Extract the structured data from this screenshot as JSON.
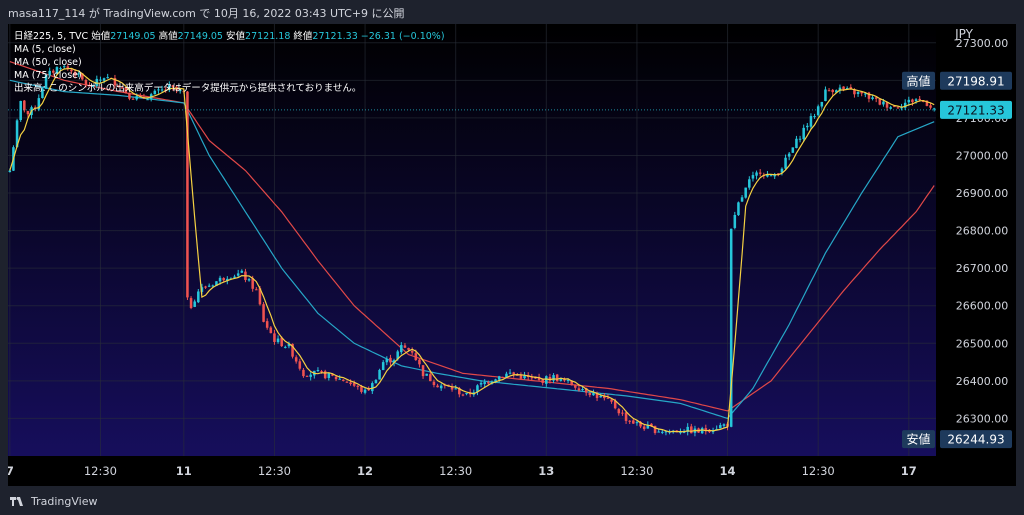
{
  "header": {
    "title": "masa117_114 が TradingView.com で 10月 16, 2022 03:43 UTC+9 に公開"
  },
  "legend": {
    "symbol": "日経225, 5, TVC",
    "open_label": "始値",
    "open_value": "27149.05",
    "high_label": "高値",
    "high_value": "27149.05",
    "low_label": "安値",
    "low_value": "27121.18",
    "close_label": "終値",
    "close_value": "27121.33",
    "change": "−26.31 (−0.10%)",
    "ma5": "MA (5, close)",
    "ma50": "MA (50, close)",
    "ma75": "MA (75, close)",
    "volume_note": "出来高: このシンボルの出来高データはデータ提供元から提供されておりません。"
  },
  "colors": {
    "up": "#26c6da",
    "down": "#ef5350",
    "ma5": "#f5d142",
    "ma50": "#26a7c7",
    "ma75": "#e04848",
    "bg_top": "#000000",
    "bg_bottom": "#160e5c",
    "label_bg": "#1e3a5c"
  },
  "footer": {
    "brand": "TradingView"
  },
  "chart_data": {
    "type": "candlestick",
    "currency": "JPY",
    "ylim": [
      26200,
      27350
    ],
    "y_ticks": [
      "27300.00",
      "27200.00",
      "27100.00",
      "27000.00",
      "26900.00",
      "26800.00",
      "26700.00",
      "26600.00",
      "26500.00",
      "26400.00",
      "26300.00"
    ],
    "x_ticks": [
      "7",
      "12:30",
      "11",
      "12:30",
      "12",
      "12:30",
      "13",
      "12:30",
      "14",
      "12:30",
      "17"
    ],
    "price_labels": [
      {
        "label": "高値",
        "value": "27198.91",
        "price": 27198.91
      },
      {
        "label": "",
        "value": "27121.33",
        "price": 27121.33
      },
      {
        "label": "安値",
        "value": "26244.93",
        "price": 26244.93
      }
    ],
    "price_path": [
      [
        0,
        26960
      ],
      [
        1.5,
        27060
      ],
      [
        3,
        27140
      ],
      [
        5,
        27110
      ],
      [
        7,
        27130
      ],
      [
        10,
        27210
      ],
      [
        14,
        27240
      ],
      [
        18,
        27220
      ],
      [
        22,
        27180
      ],
      [
        26,
        27210
      ],
      [
        30,
        27190
      ],
      [
        33,
        27160
      ],
      [
        36,
        27150
      ],
      [
        40,
        27165
      ],
      [
        44,
        27180
      ],
      [
        48,
        27165
      ],
      [
        48.5,
        26620
      ],
      [
        50,
        26600
      ],
      [
        52,
        26640
      ],
      [
        56,
        26660
      ],
      [
        60,
        26680
      ],
      [
        64,
        26685
      ],
      [
        68,
        26640
      ],
      [
        70,
        26560
      ],
      [
        73,
        26510
      ],
      [
        77,
        26490
      ],
      [
        81,
        26420
      ],
      [
        85,
        26420
      ],
      [
        89,
        26410
      ],
      [
        93,
        26400
      ],
      [
        96,
        26380
      ],
      [
        98,
        26370
      ],
      [
        100,
        26390
      ],
      [
        103,
        26450
      ],
      [
        106,
        26460
      ],
      [
        108,
        26490
      ],
      [
        111,
        26480
      ],
      [
        114,
        26420
      ],
      [
        118,
        26390
      ],
      [
        122,
        26380
      ],
      [
        126,
        26360
      ],
      [
        130,
        26390
      ],
      [
        134,
        26410
      ],
      [
        138,
        26420
      ],
      [
        142,
        26410
      ],
      [
        146,
        26400
      ],
      [
        150,
        26410
      ],
      [
        154,
        26395
      ],
      [
        158,
        26380
      ],
      [
        162,
        26360
      ],
      [
        166,
        26340
      ],
      [
        170,
        26300
      ],
      [
        174,
        26280
      ],
      [
        178,
        26270
      ],
      [
        182,
        26265
      ],
      [
        186,
        26270
      ],
      [
        190,
        26265
      ],
      [
        194,
        26275
      ],
      [
        198,
        26285
      ],
      [
        198.5,
        26780
      ],
      [
        201,
        26870
      ],
      [
        204,
        26930
      ],
      [
        207,
        26960
      ],
      [
        210,
        26940
      ],
      [
        213,
        26970
      ],
      [
        216,
        27020
      ],
      [
        219,
        27070
      ],
      [
        222,
        27110
      ],
      [
        225,
        27170
      ],
      [
        228,
        27180
      ],
      [
        232,
        27170
      ],
      [
        236,
        27160
      ],
      [
        240,
        27140
      ],
      [
        244,
        27130
      ],
      [
        247,
        27140
      ],
      [
        250,
        27150
      ],
      [
        253,
        27140
      ],
      [
        255,
        27125
      ]
    ],
    "ma50_path": [
      [
        0,
        27200
      ],
      [
        15,
        27170
      ],
      [
        30,
        27160
      ],
      [
        48,
        27140
      ],
      [
        55,
        27000
      ],
      [
        65,
        26850
      ],
      [
        75,
        26700
      ],
      [
        85,
        26580
      ],
      [
        95,
        26500
      ],
      [
        108,
        26440
      ],
      [
        118,
        26420
      ],
      [
        130,
        26400
      ],
      [
        150,
        26380
      ],
      [
        170,
        26360
      ],
      [
        185,
        26340
      ],
      [
        198,
        26300
      ],
      [
        205,
        26380
      ],
      [
        215,
        26550
      ],
      [
        225,
        26740
      ],
      [
        235,
        26900
      ],
      [
        245,
        27050
      ],
      [
        255,
        27090
      ]
    ],
    "ma75_path": [
      [
        0,
        27250
      ],
      [
        15,
        27200
      ],
      [
        30,
        27170
      ],
      [
        48,
        27140
      ],
      [
        55,
        27040
      ],
      [
        65,
        26960
      ],
      [
        75,
        26850
      ],
      [
        85,
        26720
      ],
      [
        95,
        26600
      ],
      [
        110,
        26470
      ],
      [
        125,
        26420
      ],
      [
        145,
        26400
      ],
      [
        165,
        26380
      ],
      [
        185,
        26350
      ],
      [
        198,
        26320
      ],
      [
        210,
        26400
      ],
      [
        220,
        26520
      ],
      [
        230,
        26640
      ],
      [
        240,
        26750
      ],
      [
        250,
        26850
      ],
      [
        255,
        26920
      ]
    ]
  }
}
